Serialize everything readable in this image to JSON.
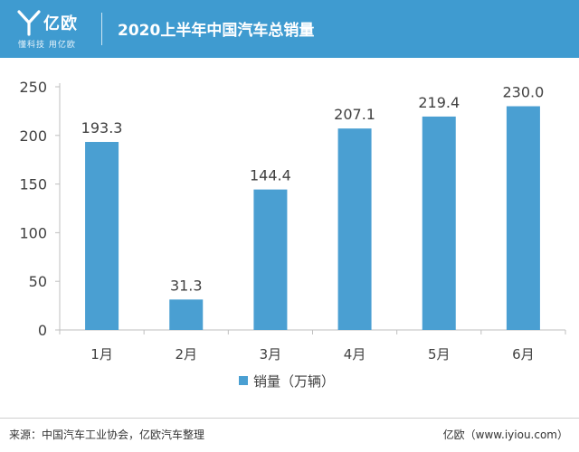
{
  "header": {
    "brand_name": "亿欧",
    "brand_slogan": "懂科技 用亿欧",
    "title": "2020上半年中国汽车总销量",
    "background_color": "#3f9bd0",
    "logo_icon": "y-logo-icon"
  },
  "chart_data": {
    "type": "bar",
    "categories": [
      "1月",
      "2月",
      "3月",
      "4月",
      "5月",
      "6月"
    ],
    "series": [
      {
        "name": "销量（万辆）",
        "values": [
          193.3,
          31.3,
          144.4,
          207.1,
          219.4,
          230.0
        ],
        "color": "#4a9fd2"
      }
    ],
    "data_labels": [
      "193.3",
      "31.3",
      "144.4",
      "207.1",
      "219.4",
      "230.0"
    ],
    "yticks": [
      0,
      50,
      100,
      150,
      200,
      250
    ],
    "ylim": [
      0,
      250
    ],
    "grid": false,
    "legend_position": "bottom-center"
  },
  "footer": {
    "source": "来源：中国汽车工业协会，亿欧汽车整理",
    "brand": "亿欧（www.iyiou.com）"
  }
}
